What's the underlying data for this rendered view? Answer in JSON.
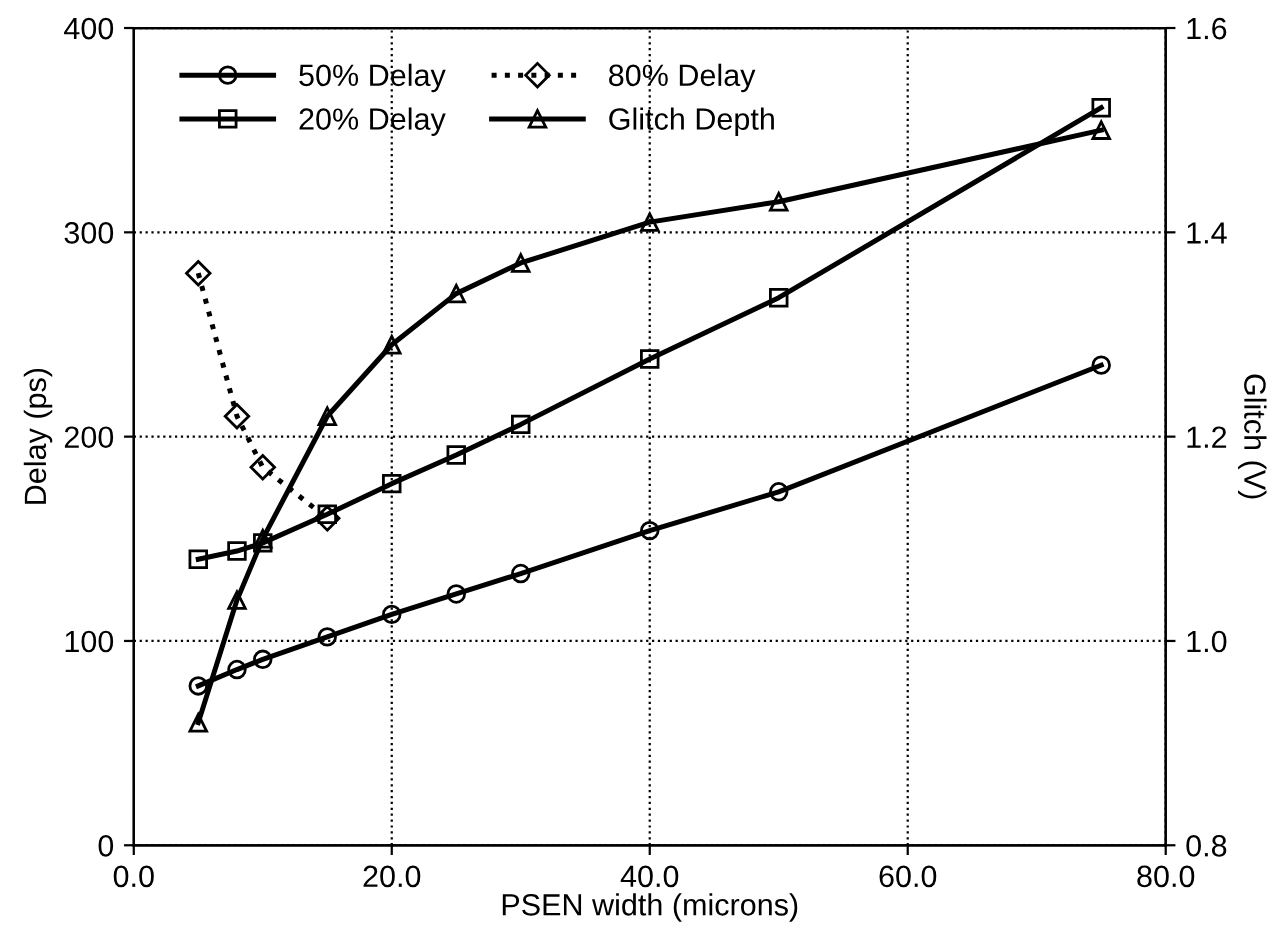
{
  "chart_data": {
    "type": "line",
    "xlabel": "PSEN width (microns)",
    "ylabel": "Delay (ps)",
    "y2label": "Glitch (V)",
    "xlim": [
      0,
      80
    ],
    "xticks": [
      {
        "value": 0,
        "label": "0.0"
      },
      {
        "value": 20,
        "label": "20.0"
      },
      {
        "value": 40,
        "label": "40.0"
      },
      {
        "value": 60,
        "label": "60.0"
      },
      {
        "value": 80,
        "label": "80.0"
      }
    ],
    "ylim": [
      0,
      400
    ],
    "yticks": [
      0,
      100,
      200,
      300,
      400
    ],
    "y2lim": [
      0.8,
      1.6
    ],
    "y2ticks": [
      {
        "value": 0.8,
        "label": "0.8"
      },
      {
        "value": 1.0,
        "label": "1.0"
      },
      {
        "value": 1.2,
        "label": "1.2"
      },
      {
        "value": 1.4,
        "label": "1.4"
      },
      {
        "value": 1.6,
        "label": "1.6"
      }
    ],
    "grid": true,
    "legend": "top left",
    "series": [
      {
        "name": "50% Delay",
        "color": "#000000",
        "marker": "circle",
        "line_style": "solid",
        "x": [
          5,
          8,
          10,
          15,
          20,
          25,
          30,
          40,
          50,
          75
        ],
        "values": [
          78,
          86,
          91,
          102,
          113,
          123,
          133,
          154,
          173,
          235
        ]
      },
      {
        "name": "20% Delay",
        "color": "#000000",
        "marker": "square",
        "line_style": "solid",
        "x": [
          5,
          8,
          10,
          15,
          20,
          25,
          30,
          40,
          50,
          75
        ],
        "values": [
          140,
          144,
          148,
          162,
          177,
          191,
          206,
          238,
          268,
          361
        ]
      },
      {
        "name": "80% Delay",
        "color": "#000000",
        "marker": "diamond",
        "line_style": "dotted",
        "x": [
          5,
          8,
          10,
          15
        ],
        "values": [
          280,
          210,
          185,
          160
        ]
      },
      {
        "name": "Glitch Depth",
        "color": "#000000",
        "marker": "triangle",
        "line_style": "solid",
        "axis": "y2",
        "x": [
          5,
          8,
          10,
          15,
          20,
          25,
          30,
          40,
          50,
          75
        ],
        "values": [
          0.92,
          1.04,
          1.1,
          1.22,
          1.29,
          1.34,
          1.37,
          1.41,
          1.43,
          1.5
        ]
      }
    ]
  }
}
